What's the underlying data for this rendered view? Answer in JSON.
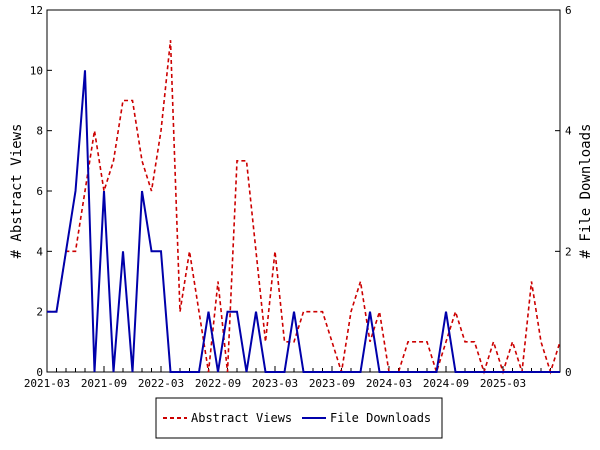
{
  "chart_data": {
    "type": "line",
    "title": "",
    "ylabel": "# Abstract Views",
    "y2label": "# File Downloads",
    "ylim": [
      0,
      12
    ],
    "y2lim": [
      0,
      6
    ],
    "yticks": [
      "0",
      "2",
      "4",
      "6",
      "8",
      "10",
      "12"
    ],
    "y2ticks": [
      "0",
      "2",
      "4",
      "6"
    ],
    "xticks": [
      "2021-03",
      "2021-09",
      "2022-03",
      "2022-09",
      "2023-03",
      "2023-09",
      "2024-03",
      "2024-09",
      "2025-03"
    ],
    "legend_position": "bottom",
    "grid": false,
    "series": [
      {
        "name": "Abstract Views",
        "axis": "left",
        "color": "#cc0000",
        "style": "dashed",
        "values": [
          2,
          2,
          4,
          4,
          6,
          8,
          6,
          7,
          9,
          9,
          7,
          6,
          8,
          11,
          2,
          4,
          2,
          0,
          3,
          0,
          7,
          7,
          4,
          1,
          4,
          1,
          1,
          2,
          2,
          2,
          1,
          0,
          2,
          3,
          1,
          2,
          0,
          0,
          1,
          1,
          1,
          0,
          1,
          2,
          1,
          1,
          0,
          1,
          0,
          1,
          0,
          3,
          1,
          0,
          1
        ]
      },
      {
        "name": "File Downloads",
        "axis": "right",
        "color": "#0000aa",
        "style": "solid",
        "values": [
          1,
          1,
          2,
          3,
          5,
          0,
          3,
          0,
          2,
          0,
          3,
          2,
          2,
          0,
          0,
          0,
          0,
          1,
          0,
          1,
          1,
          0,
          1,
          0,
          0,
          0,
          1,
          0,
          0,
          0,
          0,
          0,
          0,
          0,
          1,
          0,
          0,
          0,
          0,
          0,
          0,
          0,
          1,
          0,
          0,
          0,
          0,
          0,
          0,
          0,
          0,
          0,
          0,
          0,
          0
        ]
      }
    ]
  },
  "legend": {
    "series1_label": "Abstract Views",
    "series2_label": "File Downloads"
  }
}
